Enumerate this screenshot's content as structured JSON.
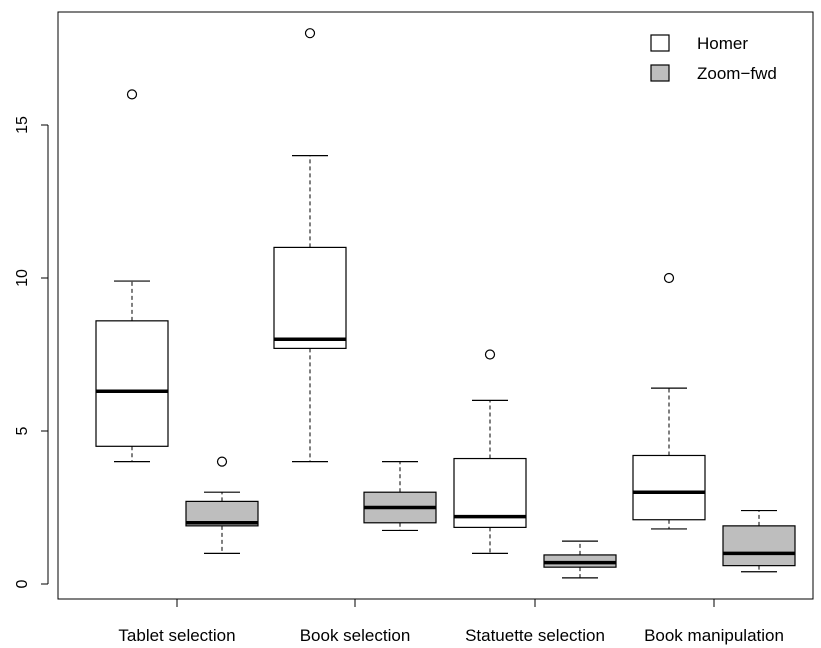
{
  "chart_data": {
    "type": "boxplot",
    "categories": [
      "Tablet selection",
      "Book selection",
      "Statuette selection",
      "Book manipulation"
    ],
    "yticks": [
      0,
      5,
      10,
      15
    ],
    "ylim": [
      -0.5,
      18.6
    ],
    "grid": false,
    "legend_position": "top-right",
    "series": [
      {
        "name": "Homer",
        "color": "#ffffff",
        "boxes": [
          {
            "min": 4.0,
            "q1": 4.5,
            "median": 6.3,
            "q3": 8.6,
            "max": 9.9,
            "outliers": [
              16.0
            ]
          },
          {
            "min": 4.0,
            "q1": 7.7,
            "median": 8.0,
            "q3": 11.0,
            "max": 14.0,
            "outliers": [
              18.0
            ]
          },
          {
            "min": 1.0,
            "q1": 1.85,
            "median": 2.2,
            "q3": 4.1,
            "max": 6.0,
            "outliers": [
              7.5
            ]
          },
          {
            "min": 1.8,
            "q1": 2.1,
            "median": 3.0,
            "q3": 4.2,
            "max": 6.4,
            "outliers": [
              10.0
            ]
          }
        ]
      },
      {
        "name": "Zoom−fwd",
        "color": "#bebebe",
        "boxes": [
          {
            "min": 1.0,
            "q1": 1.9,
            "median": 2.0,
            "q3": 2.7,
            "max": 3.0,
            "outliers": [
              4.0
            ]
          },
          {
            "min": 1.75,
            "q1": 2.0,
            "median": 2.5,
            "q3": 3.0,
            "max": 4.0,
            "outliers": []
          },
          {
            "min": 0.2,
            "q1": 0.55,
            "median": 0.7,
            "q3": 0.95,
            "max": 1.4,
            "outliers": []
          },
          {
            "min": 0.4,
            "q1": 0.6,
            "median": 1.0,
            "q3": 1.9,
            "max": 2.4,
            "outliers": []
          }
        ]
      }
    ]
  }
}
